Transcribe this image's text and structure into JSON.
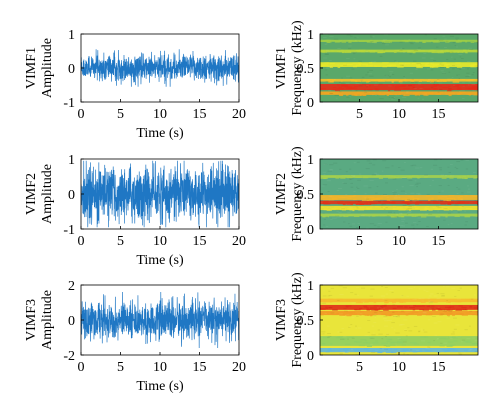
{
  "chart_data": [
    {
      "id": "vimf1-time",
      "type": "line",
      "xlabel": "Time (s)",
      "ylabel": "VIMF1\nAmplitude",
      "xlim": [
        0,
        20
      ],
      "ylim": [
        -1,
        1
      ],
      "xticks": [
        0,
        5,
        10,
        15,
        20
      ],
      "yticks": [
        -1,
        0,
        1
      ],
      "series": [
        {
          "color": "#1f77c4",
          "amplitude": 0.32,
          "spike_max": 0.55,
          "duration": 20
        }
      ]
    },
    {
      "id": "vimf1-spec",
      "type": "heatmap",
      "xlabel": "",
      "ylabel": "VIMF1\nFrequency (kHz)",
      "xlim": [
        0,
        20
      ],
      "ylim": [
        0,
        1
      ],
      "xticks": [
        5,
        10,
        15
      ],
      "yticks": [
        0,
        0.5,
        1
      ],
      "background": "#5aa86a",
      "bands": [
        {
          "center": 0.22,
          "width": 0.09,
          "color": "#e82a1a"
        },
        {
          "center": 0.13,
          "width": 0.05,
          "color": "#f6a51f"
        },
        {
          "center": 0.32,
          "width": 0.04,
          "color": "#f6c02a"
        },
        {
          "center": 0.55,
          "width": 0.07,
          "color": "#eaea2a"
        },
        {
          "center": 0.75,
          "width": 0.04,
          "color": "#b9d83a"
        },
        {
          "center": 0.9,
          "width": 0.03,
          "color": "#9fce46"
        }
      ]
    },
    {
      "id": "vimf2-time",
      "type": "line",
      "xlabel": "Time (s)",
      "ylabel": "VIMF2\nAmplitude",
      "xlim": [
        0,
        20
      ],
      "ylim": [
        -1,
        1
      ],
      "xticks": [
        0,
        5,
        10,
        15,
        20
      ],
      "yticks": [
        -1,
        0,
        1
      ],
      "series": [
        {
          "color": "#1f77c4",
          "amplitude": 0.62,
          "spike_max": 0.95,
          "duration": 20
        }
      ]
    },
    {
      "id": "vimf2-spec",
      "type": "heatmap",
      "xlabel": "",
      "ylabel": "VIMF2\nFrequency (kHz)",
      "xlim": [
        0,
        20
      ],
      "ylim": [
        0,
        1
      ],
      "xticks": [
        5,
        10,
        15
      ],
      "yticks": [
        0,
        0.5,
        1
      ],
      "background": "#5aaa82",
      "bands": [
        {
          "center": 0.38,
          "width": 0.05,
          "color": "#e23218"
        },
        {
          "center": 0.45,
          "width": 0.07,
          "color": "#f3b52a"
        },
        {
          "center": 0.3,
          "width": 0.06,
          "color": "#eee22e"
        },
        {
          "center": 0.2,
          "width": 0.04,
          "color": "#a7d24a"
        },
        {
          "center": 0.75,
          "width": 0.04,
          "color": "#a6d04c"
        }
      ]
    },
    {
      "id": "vimf3-time",
      "type": "line",
      "xlabel": "Time (s)",
      "ylabel": "VIMF3\nAmplitude",
      "xlim": [
        0,
        20
      ],
      "ylim": [
        -2,
        2
      ],
      "xticks": [
        0,
        5,
        10,
        15,
        20
      ],
      "yticks": [
        -2,
        0,
        2
      ],
      "series": [
        {
          "color": "#1f77c4",
          "amplitude": 0.85,
          "spike_max": 1.6,
          "duration": 20
        }
      ]
    },
    {
      "id": "vimf3-spec",
      "type": "heatmap",
      "xlabel": "",
      "ylabel": "VIMF3\nFrequency (kHz)",
      "xlim": [
        0,
        20
      ],
      "ylim": [
        0,
        1
      ],
      "xticks": [
        5,
        10,
        15
      ],
      "yticks": [
        0,
        0.5,
        1
      ],
      "background": "#e9e53a",
      "bands": [
        {
          "center": 0.68,
          "width": 0.07,
          "color": "#e02c18"
        },
        {
          "center": 0.6,
          "width": 0.06,
          "color": "#f29a26"
        },
        {
          "center": 0.78,
          "width": 0.05,
          "color": "#f6bd2c"
        },
        {
          "center": 0.2,
          "width": 0.14,
          "color": "#8fce62"
        },
        {
          "center": 0.07,
          "width": 0.06,
          "color": "#62b6dc"
        }
      ]
    }
  ]
}
